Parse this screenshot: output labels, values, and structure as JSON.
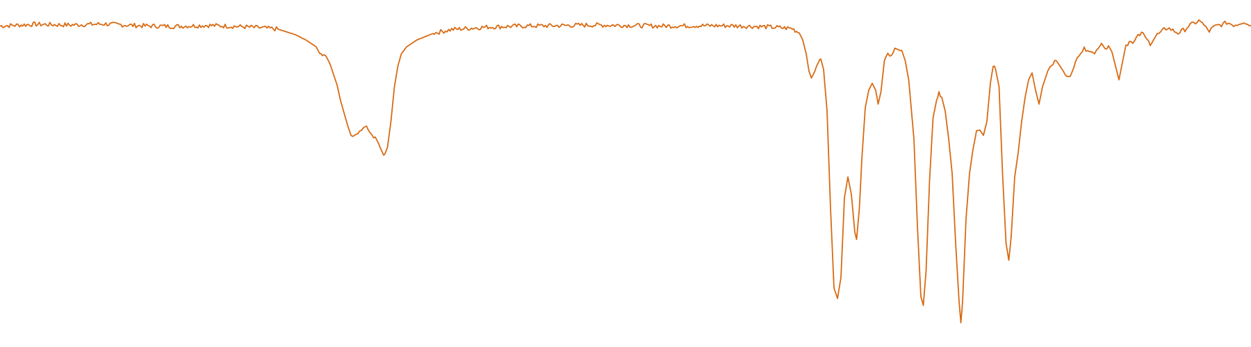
{
  "chart_data": {
    "type": "line",
    "title": "",
    "xlabel": "",
    "ylabel": "",
    "grid": false,
    "axes_visible": false,
    "legend": "none",
    "x_direction": "decreasing",
    "xlim": [
      4000,
      400
    ],
    "ylim": [
      0,
      100
    ],
    "line_color": "#d86a12",
    "series": [
      {
        "points": [
          [
            4000,
            92.5
          ],
          [
            3900,
            93.0
          ],
          [
            3800,
            92.8
          ],
          [
            3700,
            93.1
          ],
          [
            3600,
            92.6
          ],
          [
            3500,
            92.4
          ],
          [
            3400,
            92.7
          ],
          [
            3300,
            92.3
          ],
          [
            3250,
            92.0
          ],
          [
            3200,
            91.6
          ],
          [
            3150,
            90.0
          ],
          [
            3120,
            88.5
          ],
          [
            3090,
            86.5
          ],
          [
            3080,
            84.5
          ],
          [
            3060,
            83.5
          ],
          [
            3050,
            81.5
          ],
          [
            3040,
            78.5
          ],
          [
            3030,
            75.5
          ],
          [
            3020,
            71.0
          ],
          [
            3010,
            67.5
          ],
          [
            3000,
            64.0
          ],
          [
            2990,
            61.0
          ],
          [
            2980,
            60.5
          ],
          [
            2970,
            61.5
          ],
          [
            2960,
            63.0
          ],
          [
            2950,
            63.5
          ],
          [
            2940,
            62.5
          ],
          [
            2930,
            61.0
          ],
          [
            2920,
            60.5
          ],
          [
            2910,
            58.5
          ],
          [
            2900,
            56.0
          ],
          [
            2893,
            55.5
          ],
          [
            2885,
            57.5
          ],
          [
            2875,
            65.0
          ],
          [
            2865,
            75.0
          ],
          [
            2855,
            81.0
          ],
          [
            2845,
            84.5
          ],
          [
            2830,
            86.5
          ],
          [
            2800,
            88.5
          ],
          [
            2750,
            90.5
          ],
          [
            2700,
            91.5
          ],
          [
            2600,
            92.2
          ],
          [
            2500,
            92.5
          ],
          [
            2400,
            92.6
          ],
          [
            2300,
            92.8
          ],
          [
            2200,
            92.7
          ],
          [
            2100,
            92.5
          ],
          [
            2000,
            92.6
          ],
          [
            1900,
            92.6
          ],
          [
            1800,
            92.3
          ],
          [
            1720,
            91.8
          ],
          [
            1700,
            90.5
          ],
          [
            1690,
            88.5
          ],
          [
            1680,
            84.5
          ],
          [
            1672,
            79.5
          ],
          [
            1665,
            77.5
          ],
          [
            1655,
            79.5
          ],
          [
            1645,
            82.5
          ],
          [
            1638,
            83.0
          ],
          [
            1630,
            80.0
          ],
          [
            1620,
            68.0
          ],
          [
            1610,
            40.0
          ],
          [
            1600,
            17.0
          ],
          [
            1590,
            14.0
          ],
          [
            1580,
            20.0
          ],
          [
            1570,
            43.0
          ],
          [
            1560,
            49.0
          ],
          [
            1550,
            44.0
          ],
          [
            1540,
            33.0
          ],
          [
            1535,
            31.0
          ],
          [
            1527,
            40.0
          ],
          [
            1520,
            54.0
          ],
          [
            1510,
            69.0
          ],
          [
            1500,
            74.0
          ],
          [
            1490,
            76.0
          ],
          [
            1480,
            74.0
          ],
          [
            1473,
            70.0
          ],
          [
            1465,
            73.5
          ],
          [
            1455,
            82.5
          ],
          [
            1445,
            85.0
          ],
          [
            1435,
            84.0
          ],
          [
            1425,
            85.5
          ],
          [
            1415,
            86.0
          ],
          [
            1405,
            85.5
          ],
          [
            1395,
            82.5
          ],
          [
            1385,
            77.0
          ],
          [
            1370,
            60.0
          ],
          [
            1360,
            35.0
          ],
          [
            1350,
            14.5
          ],
          [
            1343,
            12.0
          ],
          [
            1335,
            22.0
          ],
          [
            1325,
            48.0
          ],
          [
            1315,
            66.0
          ],
          [
            1305,
            71.0
          ],
          [
            1298,
            73.0
          ],
          [
            1290,
            72.0
          ],
          [
            1280,
            68.0
          ],
          [
            1270,
            60.0
          ],
          [
            1260,
            50.0
          ],
          [
            1250,
            30.0
          ],
          [
            1240,
            13.0
          ],
          [
            1235,
            7.0
          ],
          [
            1230,
            13.0
          ],
          [
            1220,
            37.0
          ],
          [
            1210,
            50.0
          ],
          [
            1200,
            57.0
          ],
          [
            1190,
            62.0
          ],
          [
            1180,
            62.5
          ],
          [
            1170,
            61.0
          ],
          [
            1160,
            65.0
          ],
          [
            1150,
            76.0
          ],
          [
            1142,
            81.0
          ],
          [
            1135,
            80.0
          ],
          [
            1125,
            75.0
          ],
          [
            1115,
            50.0
          ],
          [
            1105,
            30.0
          ],
          [
            1097,
            25.0
          ],
          [
            1090,
            32.0
          ],
          [
            1080,
            49.0
          ],
          [
            1070,
            56.0
          ],
          [
            1060,
            65.0
          ],
          [
            1050,
            72.0
          ],
          [
            1040,
            77.0
          ],
          [
            1030,
            79.0
          ],
          [
            1020,
            74.0
          ],
          [
            1010,
            70.0
          ],
          [
            1000,
            75.0
          ],
          [
            990,
            78.0
          ],
          [
            980,
            81.0
          ],
          [
            970,
            82.0
          ],
          [
            960,
            82.5
          ],
          [
            950,
            81.0
          ],
          [
            940,
            79.5
          ],
          [
            930,
            77.5
          ],
          [
            920,
            78.0
          ],
          [
            910,
            80.5
          ],
          [
            900,
            84.0
          ],
          [
            890,
            85.0
          ],
          [
            880,
            85.8
          ],
          [
            870,
            86.0
          ],
          [
            860,
            85.0
          ],
          [
            850,
            84.5
          ],
          [
            840,
            86.5
          ],
          [
            830,
            87.5
          ],
          [
            820,
            86.0
          ],
          [
            810,
            86.8
          ],
          [
            800,
            85.0
          ],
          [
            790,
            81.0
          ],
          [
            780,
            77.0
          ],
          [
            770,
            82.0
          ],
          [
            760,
            87.0
          ],
          [
            750,
            88.0
          ],
          [
            740,
            87.5
          ],
          [
            730,
            89.0
          ],
          [
            720,
            90.0
          ],
          [
            710,
            90.5
          ],
          [
            700,
            88.5
          ],
          [
            690,
            87.5
          ],
          [
            680,
            88.8
          ],
          [
            670,
            90.0
          ],
          [
            660,
            90.5
          ],
          [
            650,
            91.5
          ],
          [
            640,
            92.0
          ],
          [
            630,
            91.5
          ],
          [
            620,
            91.0
          ],
          [
            610,
            90.5
          ],
          [
            600,
            91.0
          ],
          [
            590,
            91.5
          ],
          [
            580,
            92.5
          ],
          [
            570,
            93.0
          ],
          [
            560,
            93.5
          ],
          [
            550,
            94.0
          ],
          [
            540,
            93.5
          ],
          [
            530,
            92.0
          ],
          [
            520,
            91.0
          ],
          [
            510,
            92.0
          ],
          [
            500,
            92.5
          ],
          [
            490,
            92.8
          ],
          [
            480,
            93.0
          ],
          [
            470,
            93.5
          ],
          [
            460,
            93.2
          ],
          [
            450,
            92.8
          ],
          [
            440,
            93.0
          ],
          [
            430,
            93.5
          ],
          [
            420,
            93.8
          ],
          [
            410,
            93.0
          ],
          [
            400,
            92.6
          ]
        ]
      }
    ]
  }
}
